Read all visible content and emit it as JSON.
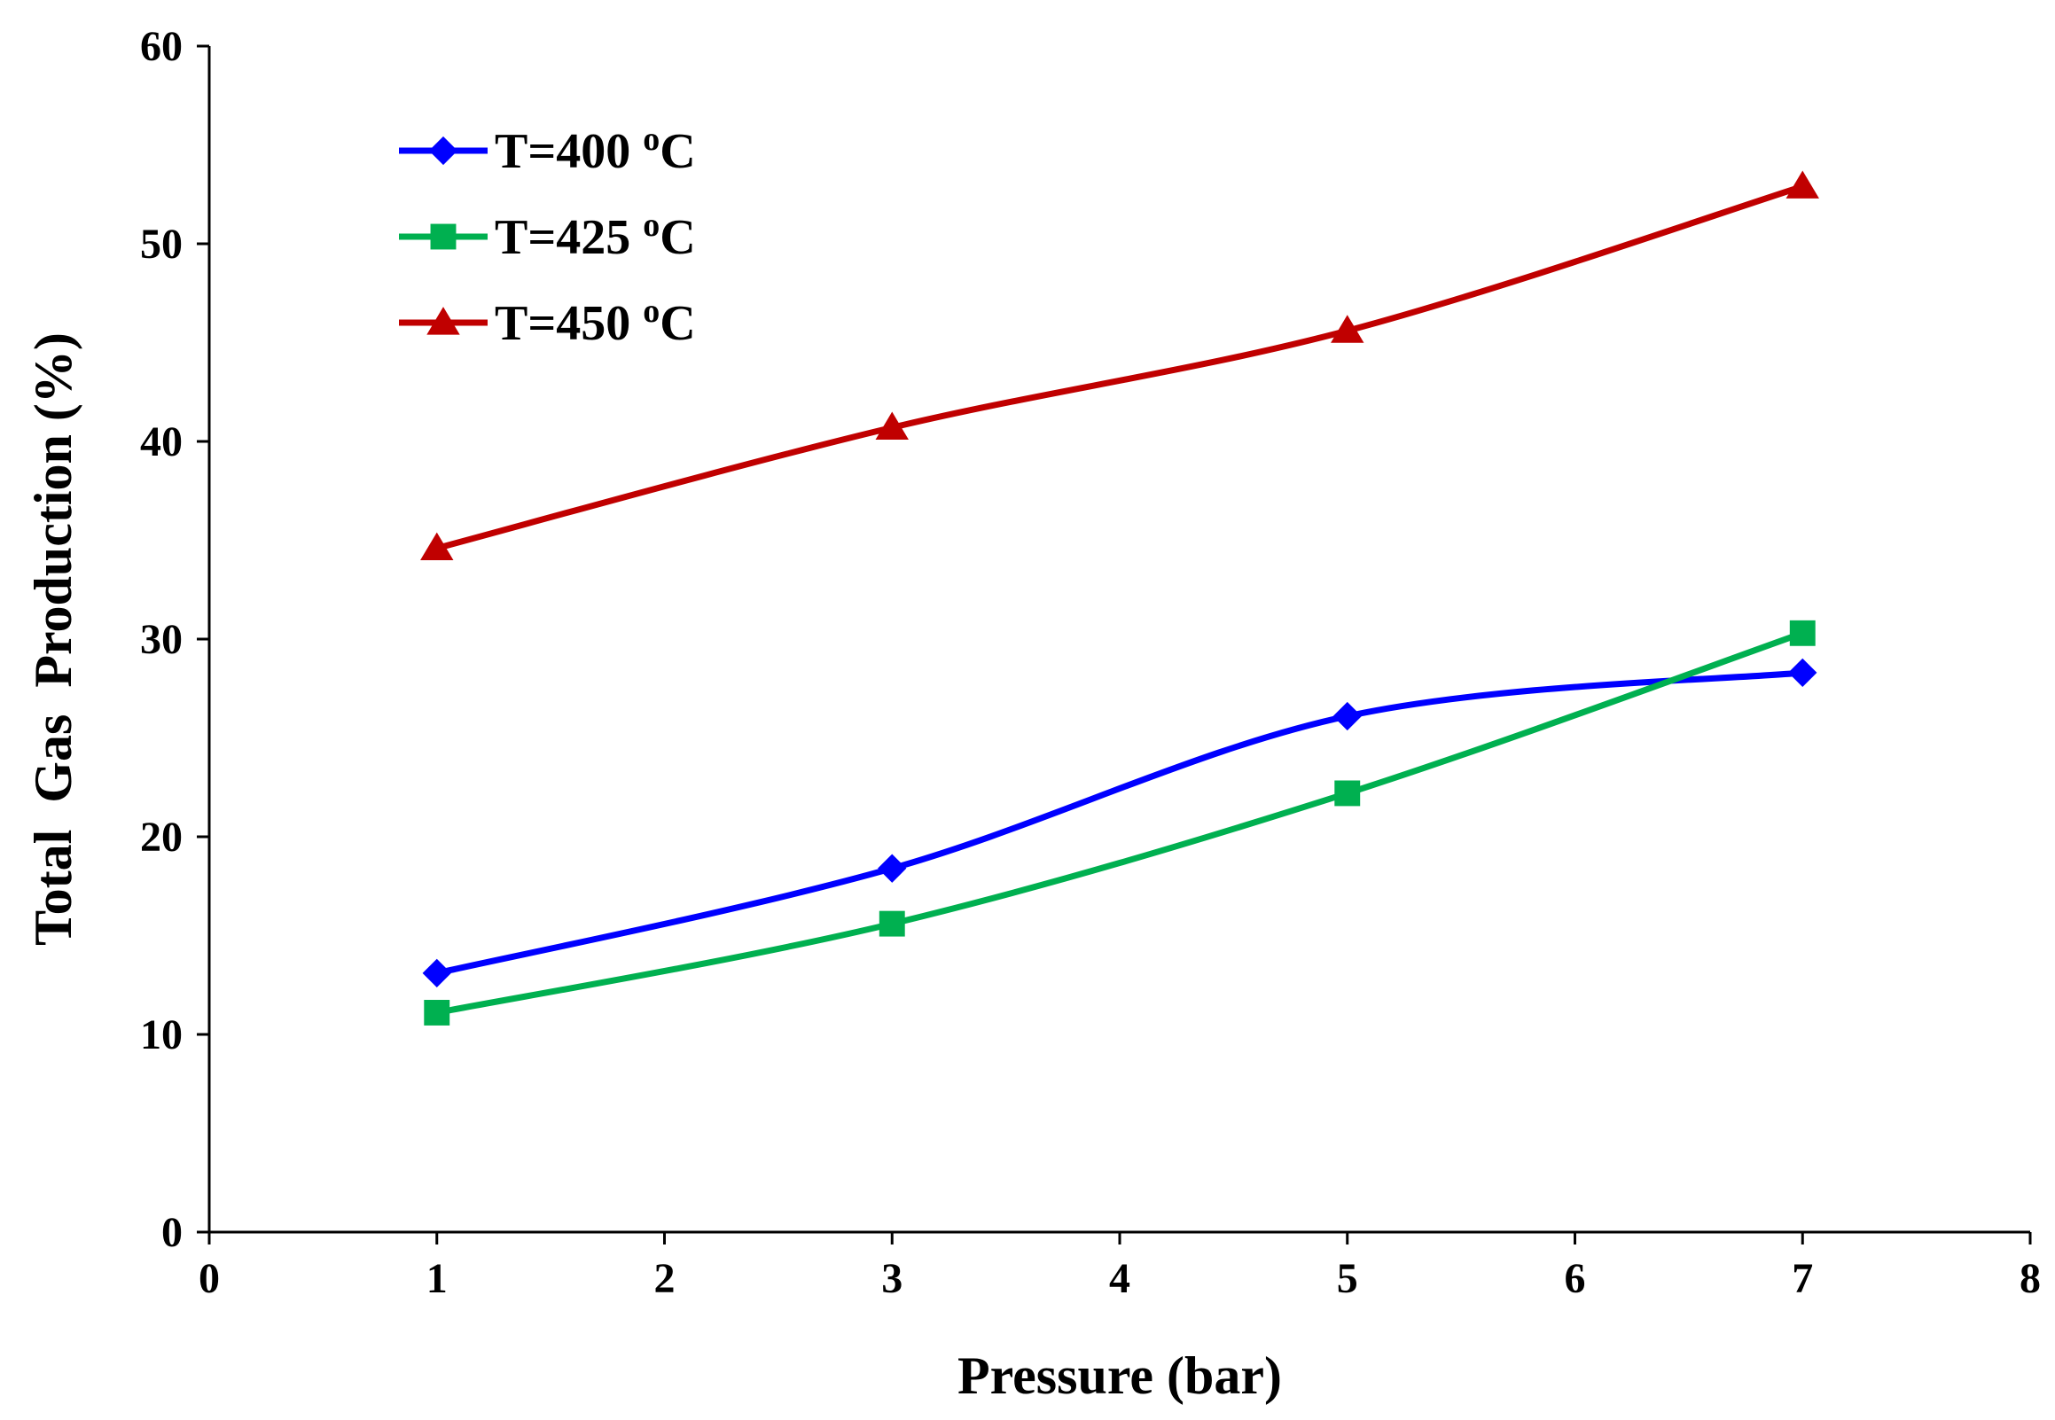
{
  "chart_data": {
    "type": "line",
    "title": "",
    "xlabel": "Pressure (bar)",
    "ylabel": "Total  Gas  Production (%)",
    "xlim": [
      0,
      8
    ],
    "ylim": [
      0,
      60
    ],
    "xticks": [
      "0",
      "1",
      "2",
      "3",
      "4",
      "5",
      "6",
      "7",
      "8"
    ],
    "yticks": [
      "0",
      "10",
      "20",
      "30",
      "40",
      "50",
      "60"
    ],
    "grid": false,
    "legend_position": "top-left",
    "smooth": true,
    "x": [
      1,
      3,
      5,
      7
    ],
    "series": [
      {
        "name": "T=400 oC",
        "legend_main": "T=400 ",
        "legend_sup": "o",
        "legend_unit": "C",
        "values": [
          13.1,
          18.4,
          26.1,
          28.3
        ],
        "color": "#0000ff",
        "marker": "diamond"
      },
      {
        "name": "T=425 oC",
        "legend_main": "T=425 ",
        "legend_sup": "o",
        "legend_unit": "C",
        "values": [
          11.1,
          15.6,
          22.2,
          30.3
        ],
        "color": "#00b050",
        "marker": "square"
      },
      {
        "name": "T=450 oC",
        "legend_main": "T=450 ",
        "legend_sup": "o",
        "legend_unit": "C",
        "values": [
          34.6,
          40.7,
          45.6,
          52.9
        ],
        "color": "#c00000",
        "marker": "triangle"
      }
    ]
  }
}
